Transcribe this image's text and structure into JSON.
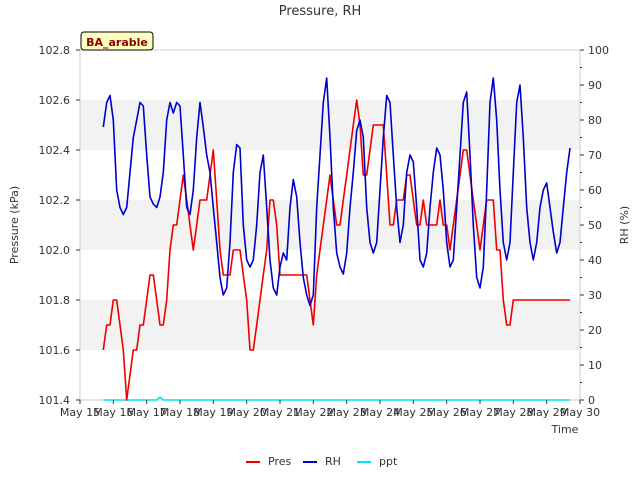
{
  "chart_data": {
    "type": "line",
    "title": "Pressure, RH",
    "station_label": "BA_arable",
    "xlabel": "Time",
    "ylabel_left": "Pressure (kPa)",
    "ylabel_right": "RH (%)",
    "x_ticks": [
      "May 15",
      "May 16",
      "May 17",
      "May 18",
      "May 19",
      "May 20",
      "May 21",
      "May 22",
      "May 23",
      "May 24",
      "May 25",
      "May 26",
      "May 27",
      "May 28",
      "May 29",
      "May 30"
    ],
    "xlim": [
      15,
      30
    ],
    "ylim_left": [
      101.4,
      102.8
    ],
    "ylim_right": [
      0,
      100
    ],
    "y_ticks_left": [
      "101.4",
      "101.6",
      "101.8",
      "102.0",
      "102.2",
      "102.4",
      "102.6",
      "102.8"
    ],
    "y_ticks_right": [
      "0",
      "10",
      "20",
      "30",
      "40",
      "50",
      "60",
      "70",
      "80",
      "90",
      "100"
    ],
    "grid": "horizontal bands",
    "legend_position": "bottom-center",
    "colors": {
      "Pres": "#ee0000",
      "RH": "#0000cc",
      "ppt": "#00e5ee",
      "band": "#f2f2f2",
      "station_bg": "#ffffc0"
    },
    "series": [
      {
        "name": "Pres",
        "axis": "left",
        "x": [
          15.7,
          15.8,
          15.9,
          16.0,
          16.1,
          16.2,
          16.3,
          16.4,
          16.5,
          16.6,
          16.7,
          16.8,
          16.9,
          17.0,
          17.1,
          17.2,
          17.3,
          17.4,
          17.5,
          17.6,
          17.7,
          17.8,
          17.9,
          18.0,
          18.1,
          18.2,
          18.3,
          18.4,
          18.5,
          18.6,
          18.7,
          18.8,
          18.9,
          19.0,
          19.1,
          19.2,
          19.3,
          19.4,
          19.5,
          19.6,
          19.7,
          19.8,
          19.9,
          20.0,
          20.1,
          20.2,
          20.3,
          20.4,
          20.5,
          20.6,
          20.7,
          20.8,
          20.9,
          21.0,
          21.1,
          21.2,
          21.3,
          21.4,
          21.5,
          21.6,
          21.7,
          21.8,
          21.9,
          22.0,
          22.1,
          22.2,
          22.3,
          22.4,
          22.5,
          22.6,
          22.7,
          22.8,
          22.9,
          23.0,
          23.1,
          23.2,
          23.3,
          23.4,
          23.5,
          23.6,
          23.7,
          23.8,
          23.9,
          24.0,
          24.1,
          24.2,
          24.3,
          24.4,
          24.5,
          24.6,
          24.7,
          24.8,
          24.9,
          25.0,
          25.1,
          25.2,
          25.3,
          25.4,
          25.5,
          25.6,
          25.7,
          25.8,
          25.9,
          26.0,
          26.1,
          26.2,
          26.3,
          26.4,
          26.5,
          26.6,
          26.7,
          26.8,
          26.9,
          27.0,
          27.1,
          27.2,
          27.3,
          27.4,
          27.5,
          27.6,
          27.7,
          27.8,
          27.9,
          28.0,
          28.1,
          28.2,
          28.3,
          28.4,
          28.5,
          28.6,
          28.7,
          28.8,
          28.9,
          29.0,
          29.1,
          29.2,
          29.3,
          29.4,
          29.5,
          29.6,
          29.7
        ],
        "values": [
          101.6,
          101.7,
          101.7,
          101.8,
          101.8,
          101.7,
          101.6,
          101.4,
          101.5,
          101.6,
          101.6,
          101.7,
          101.7,
          101.8,
          101.9,
          101.9,
          101.8,
          101.7,
          101.7,
          101.8,
          102.0,
          102.1,
          102.1,
          102.2,
          102.3,
          102.2,
          102.1,
          102.0,
          102.1,
          102.2,
          102.2,
          102.2,
          102.3,
          102.4,
          102.2,
          102.0,
          101.9,
          101.9,
          101.9,
          102.0,
          102.0,
          102.0,
          101.9,
          101.8,
          101.6,
          101.6,
          101.7,
          101.8,
          101.9,
          102.0,
          102.2,
          102.2,
          102.1,
          101.9,
          101.9,
          101.9,
          101.9,
          101.9,
          101.9,
          101.9,
          101.9,
          101.9,
          101.8,
          101.7,
          101.9,
          102.0,
          102.1,
          102.2,
          102.3,
          102.2,
          102.1,
          102.1,
          102.2,
          102.3,
          102.4,
          102.5,
          102.6,
          102.5,
          102.3,
          102.3,
          102.4,
          102.5,
          102.5,
          102.5,
          102.5,
          102.3,
          102.1,
          102.1,
          102.2,
          102.2,
          102.2,
          102.3,
          102.3,
          102.2,
          102.1,
          102.1,
          102.2,
          102.1,
          102.1,
          102.1,
          102.1,
          102.2,
          102.1,
          102.1,
          102.0,
          102.1,
          102.2,
          102.3,
          102.4,
          102.4,
          102.3,
          102.2,
          102.1,
          102.0,
          102.1,
          102.2,
          102.2,
          102.2,
          102.0,
          102.0,
          101.8,
          101.7,
          101.7,
          101.8,
          101.8,
          101.8,
          101.8,
          101.8,
          101.8,
          101.8,
          101.8,
          101.8,
          101.8,
          101.8,
          101.8,
          101.8,
          101.8,
          101.8,
          101.8,
          101.8,
          101.8
        ],
        "values_note_end": "series ends at May 29"
      },
      {
        "name": "RH",
        "axis": "right",
        "x": [
          15.7,
          15.8,
          15.9,
          16.0,
          16.1,
          16.2,
          16.3,
          16.4,
          16.5,
          16.6,
          16.7,
          16.8,
          16.9,
          17.0,
          17.1,
          17.2,
          17.3,
          17.4,
          17.5,
          17.6,
          17.7,
          17.8,
          17.9,
          18.0,
          18.1,
          18.2,
          18.3,
          18.4,
          18.5,
          18.6,
          18.7,
          18.8,
          18.9,
          19.0,
          19.1,
          19.2,
          19.3,
          19.4,
          19.5,
          19.6,
          19.7,
          19.8,
          19.9,
          20.0,
          20.1,
          20.2,
          20.3,
          20.4,
          20.5,
          20.6,
          20.7,
          20.8,
          20.9,
          21.0,
          21.1,
          21.2,
          21.3,
          21.4,
          21.5,
          21.6,
          21.7,
          21.8,
          21.9,
          22.0,
          22.1,
          22.2,
          22.3,
          22.4,
          22.5,
          22.6,
          22.7,
          22.8,
          22.9,
          23.0,
          23.1,
          23.2,
          23.3,
          23.4,
          23.5,
          23.6,
          23.7,
          23.8,
          23.9,
          24.0,
          24.1,
          24.2,
          24.3,
          24.4,
          24.5,
          24.6,
          24.7,
          24.8,
          24.9,
          25.0,
          25.1,
          25.2,
          25.3,
          25.4,
          25.5,
          25.6,
          25.7,
          25.8,
          25.9,
          26.0,
          26.1,
          26.2,
          26.3,
          26.4,
          26.5,
          26.6,
          26.7,
          26.8,
          26.9,
          27.0,
          27.1,
          27.2,
          27.3,
          27.4,
          27.5,
          27.6,
          27.7,
          27.8,
          27.9,
          28.0,
          28.1,
          28.2,
          28.3,
          28.4,
          28.5,
          28.6,
          28.7,
          28.8,
          28.9,
          29.0,
          29.1,
          29.2,
          29.3,
          29.4,
          29.5,
          29.6,
          29.7
        ],
        "values": [
          78,
          85,
          87,
          80,
          60,
          55,
          53,
          55,
          65,
          75,
          80,
          85,
          84,
          70,
          58,
          56,
          55,
          58,
          65,
          80,
          85,
          82,
          85,
          84,
          70,
          55,
          53,
          60,
          75,
          85,
          78,
          70,
          65,
          55,
          45,
          35,
          30,
          32,
          45,
          65,
          73,
          72,
          50,
          40,
          38,
          40,
          50,
          65,
          70,
          55,
          40,
          32,
          30,
          38,
          42,
          40,
          55,
          63,
          58,
          45,
          35,
          30,
          27,
          30,
          55,
          70,
          85,
          92,
          75,
          55,
          42,
          38,
          36,
          42,
          55,
          65,
          77,
          80,
          75,
          55,
          45,
          42,
          45,
          60,
          75,
          87,
          85,
          70,
          55,
          45,
          50,
          65,
          70,
          68,
          55,
          40,
          38,
          42,
          55,
          65,
          72,
          70,
          60,
          45,
          38,
          40,
          55,
          70,
          85,
          88,
          70,
          50,
          35,
          32,
          38,
          60,
          85,
          92,
          80,
          60,
          45,
          40,
          45,
          65,
          85,
          90,
          75,
          55,
          45,
          40,
          45,
          55,
          60,
          62,
          55,
          48,
          42,
          45,
          55,
          65,
          72
        ],
        "values_note_end": "series ends at May 29"
      },
      {
        "name": "ppt",
        "axis": "right",
        "x": [
          15.7,
          17.3,
          17.4,
          17.5,
          29.7
        ],
        "values": [
          0,
          0,
          0.8,
          0,
          0
        ]
      }
    ]
  }
}
